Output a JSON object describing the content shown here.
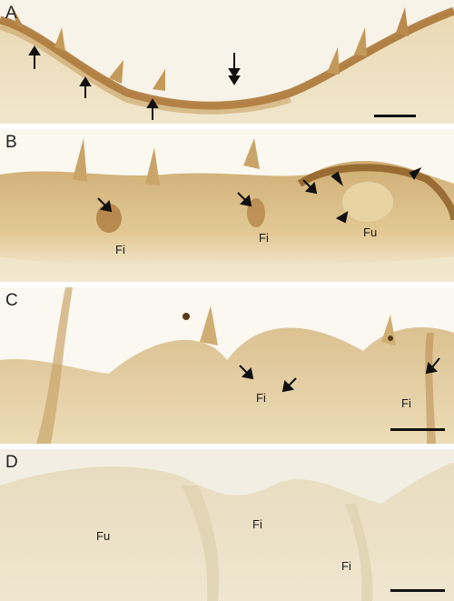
{
  "figure": {
    "panels": [
      {
        "id": "A",
        "letter": "A",
        "labels": []
      },
      {
        "id": "B",
        "letter": "B",
        "labels": [
          "Fi",
          "Fi",
          "Fu"
        ]
      },
      {
        "id": "C",
        "letter": "C",
        "labels": [
          "Fi",
          "Fi"
        ]
      },
      {
        "id": "D",
        "letter": "D",
        "labels": [
          "Fu",
          "Fi",
          "Fi"
        ]
      }
    ],
    "colors": {
      "background_light": "#f3eee0",
      "tissue": "#d9c08e",
      "stain_dark": "#8a5a22",
      "arrow": "#111111"
    }
  }
}
